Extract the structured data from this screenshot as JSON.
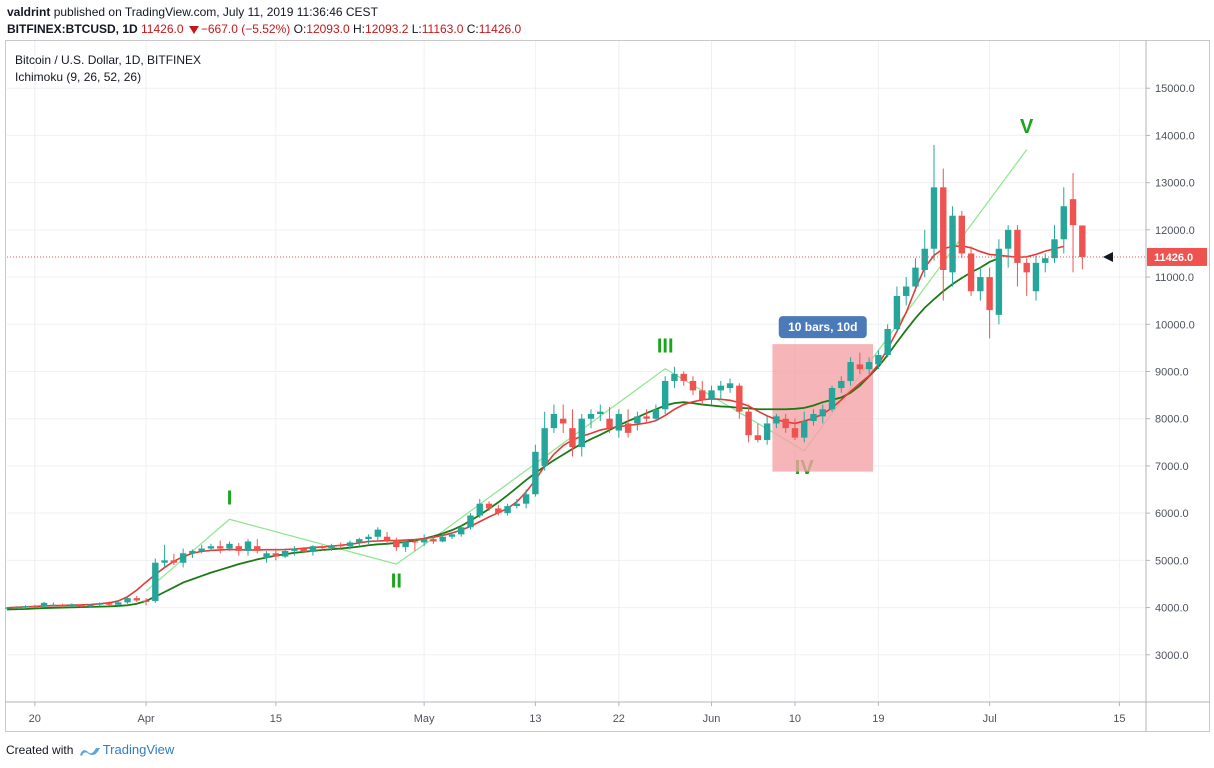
{
  "header": {
    "user": "valdrint",
    "published_text": "published on TradingView.com, July 11, 2019 11:36:46 CEST",
    "symbol": "BITFINEX:BTCUSD, 1D",
    "last": "11426.0",
    "change": "−667.0 (−5.52%)",
    "o_label": "O:",
    "o_value": "12093.0",
    "h_label": "H:",
    "h_value": "12093.2",
    "l_label": "L:",
    "l_value": "11163.0",
    "c_label": "C:",
    "c_value": "11426.0"
  },
  "legend": {
    "title": "Bitcoin / U.S. Dollar, 1D, BITFINEX",
    "indicator": "Ichimoku (9, 26, 52, 26)"
  },
  "footer": {
    "created_with": "Created with",
    "brand": "TradingView"
  },
  "colors": {
    "up": "#26a69a",
    "down": "#ef5350",
    "tenkan": "#e53935",
    "kijun": "#1b7a14",
    "wave": "#8de58d",
    "wave_label": "#1aa51a",
    "box": "#f4a3a6",
    "tag": "#4a7ab8"
  },
  "chart_data": {
    "type": "candlestick",
    "title": "Bitcoin / U.S. Dollar, 1D, BITFINEX",
    "ylim": [
      2000,
      16000
    ],
    "yticks": [
      "3000.0",
      "4000.0",
      "5000.0",
      "6000.0",
      "7000.0",
      "8000.0",
      "9000.0",
      "10000.0",
      "11000.0",
      "12000.0",
      "13000.0",
      "14000.0",
      "15000.0"
    ],
    "ytick_values": [
      3000,
      4000,
      5000,
      6000,
      7000,
      8000,
      9000,
      10000,
      11000,
      12000,
      13000,
      14000,
      15000
    ],
    "xlim": [
      0,
      123
    ],
    "xticks": [
      {
        "i": 3,
        "label": "20"
      },
      {
        "i": 15,
        "label": "Apr"
      },
      {
        "i": 29,
        "label": "15"
      },
      {
        "i": 45,
        "label": "May"
      },
      {
        "i": 57,
        "label": "13"
      },
      {
        "i": 66,
        "label": "22"
      },
      {
        "i": 76,
        "label": "Jun"
      },
      {
        "i": 85,
        "label": "10"
      },
      {
        "i": 94,
        "label": "19"
      },
      {
        "i": 106,
        "label": "Jul"
      },
      {
        "i": 120,
        "label": "15"
      }
    ],
    "price_line": 11426,
    "price_label": "11426.0",
    "candles": [
      [
        3980,
        4010,
        3960,
        4000
      ],
      [
        4000,
        4030,
        3980,
        4010
      ],
      [
        4010,
        4050,
        3990,
        4030
      ],
      [
        4030,
        4060,
        4000,
        4020
      ],
      [
        4020,
        4120,
        4000,
        4100
      ],
      [
        4050,
        4110,
        4020,
        4060
      ],
      [
        4060,
        4080,
        4000,
        4040
      ],
      [
        4040,
        4090,
        4010,
        4070
      ],
      [
        4040,
        4080,
        4000,
        4020
      ],
      [
        4020,
        4070,
        4000,
        4060
      ],
      [
        4060,
        4110,
        4030,
        4090
      ],
      [
        4090,
        4130,
        4040,
        4060
      ],
      [
        4060,
        4150,
        4030,
        4110
      ],
      [
        4110,
        4250,
        4080,
        4200
      ],
      [
        4200,
        4250,
        4120,
        4150
      ],
      [
        4150,
        4200,
        4050,
        4120
      ],
      [
        4140,
        5040,
        4100,
        4950
      ],
      [
        4950,
        5330,
        4850,
        5000
      ],
      [
        5000,
        5140,
        4900,
        4950
      ],
      [
        4950,
        5250,
        4850,
        5150
      ],
      [
        5150,
        5230,
        5050,
        5200
      ],
      [
        5200,
        5330,
        5150,
        5250
      ],
      [
        5250,
        5350,
        5200,
        5300
      ],
      [
        5300,
        5420,
        5150,
        5250
      ],
      [
        5250,
        5400,
        5200,
        5350
      ],
      [
        5300,
        5370,
        5100,
        5200
      ],
      [
        5200,
        5450,
        5100,
        5400
      ],
      [
        5300,
        5450,
        5150,
        5200
      ],
      [
        5050,
        5200,
        4950,
        5150
      ],
      [
        5150,
        5250,
        5000,
        5080
      ],
      [
        5080,
        5250,
        5050,
        5200
      ],
      [
        5200,
        5300,
        5100,
        5250
      ],
      [
        5250,
        5280,
        5150,
        5180
      ],
      [
        5180,
        5320,
        5100,
        5300
      ],
      [
        5300,
        5320,
        5200,
        5260
      ],
      [
        5260,
        5350,
        5200,
        5320
      ],
      [
        5320,
        5380,
        5250,
        5300
      ],
      [
        5300,
        5420,
        5230,
        5380
      ],
      [
        5380,
        5480,
        5300,
        5450
      ],
      [
        5450,
        5550,
        5350,
        5500
      ],
      [
        5500,
        5700,
        5400,
        5650
      ],
      [
        5500,
        5600,
        5350,
        5420
      ],
      [
        5420,
        5480,
        5200,
        5280
      ],
      [
        5280,
        5450,
        5180,
        5400
      ],
      [
        5400,
        5450,
        5200,
        5380
      ],
      [
        5380,
        5550,
        5300,
        5450
      ],
      [
        5450,
        5520,
        5350,
        5400
      ],
      [
        5400,
        5580,
        5380,
        5500
      ],
      [
        5500,
        5600,
        5450,
        5550
      ],
      [
        5550,
        5750,
        5500,
        5700
      ],
      [
        5700,
        6000,
        5650,
        5950
      ],
      [
        5950,
        6300,
        5900,
        6200
      ],
      [
        6200,
        6250,
        6050,
        6100
      ],
      [
        6100,
        6180,
        5950,
        6000
      ],
      [
        6000,
        6200,
        5950,
        6150
      ],
      [
        6150,
        6300,
        6100,
        6200
      ],
      [
        6200,
        6500,
        6100,
        6400
      ],
      [
        6400,
        7450,
        6350,
        7300
      ],
      [
        7000,
        8150,
        6900,
        7800
      ],
      [
        7800,
        8300,
        7700,
        8100
      ],
      [
        8000,
        8300,
        7700,
        7900
      ],
      [
        7800,
        8200,
        7200,
        7400
      ],
      [
        7400,
        8100,
        7200,
        8000
      ],
      [
        8000,
        8200,
        7800,
        8100
      ],
      [
        8100,
        8300,
        7950,
        8150
      ],
      [
        8000,
        8250,
        7700,
        7800
      ],
      [
        7750,
        8200,
        7600,
        8100
      ],
      [
        7900,
        8200,
        7600,
        7700
      ],
      [
        7900,
        8150,
        7750,
        8050
      ],
      [
        8050,
        8200,
        7900,
        8000
      ],
      [
        8000,
        8300,
        7950,
        8200
      ],
      [
        8200,
        8900,
        8100,
        8800
      ],
      [
        8800,
        9100,
        8650,
        8950
      ],
      [
        8950,
        9000,
        8700,
        8800
      ],
      [
        8800,
        8900,
        8500,
        8600
      ],
      [
        8600,
        8800,
        8300,
        8400
      ],
      [
        8400,
        8700,
        8300,
        8600
      ],
      [
        8600,
        8800,
        8400,
        8700
      ],
      [
        8650,
        8850,
        8550,
        8750
      ],
      [
        8700,
        8750,
        8000,
        8150
      ],
      [
        8150,
        8300,
        7500,
        7650
      ],
      [
        7650,
        7900,
        7500,
        7550
      ],
      [
        7550,
        8050,
        7450,
        7900
      ],
      [
        7900,
        8100,
        7800,
        8050
      ],
      [
        8000,
        8100,
        7700,
        7800
      ],
      [
        7800,
        8000,
        7550,
        7600
      ],
      [
        7600,
        8150,
        7500,
        7950
      ],
      [
        7950,
        8200,
        7850,
        8100
      ],
      [
        8050,
        8300,
        7900,
        8200
      ],
      [
        8200,
        8700,
        8150,
        8650
      ],
      [
        8650,
        8900,
        8550,
        8800
      ],
      [
        8800,
        9300,
        8700,
        9200
      ],
      [
        9150,
        9400,
        8950,
        9050
      ],
      [
        9050,
        9300,
        8950,
        9200
      ],
      [
        9150,
        9450,
        9050,
        9350
      ],
      [
        9350,
        10000,
        9300,
        9900
      ],
      [
        9900,
        10800,
        9850,
        10600
      ],
      [
        10600,
        11000,
        10400,
        10800
      ],
      [
        10800,
        11400,
        10700,
        11200
      ],
      [
        11150,
        12000,
        11000,
        11600
      ],
      [
        11600,
        13800,
        11350,
        12900
      ],
      [
        12900,
        13300,
        10500,
        11150
      ],
      [
        11100,
        12500,
        10800,
        12300
      ],
      [
        12300,
        12400,
        11400,
        11500
      ],
      [
        11500,
        11650,
        10600,
        10700
      ],
      [
        10700,
        11200,
        10500,
        11000
      ],
      [
        11000,
        11200,
        9700,
        10300
      ],
      [
        10200,
        11800,
        10000,
        11600
      ],
      [
        11600,
        12100,
        11200,
        12000
      ],
      [
        12000,
        12100,
        10800,
        11300
      ],
      [
        11300,
        11400,
        10600,
        11100
      ],
      [
        10700,
        11450,
        10500,
        11300
      ],
      [
        11300,
        11500,
        11100,
        11400
      ],
      [
        11400,
        12100,
        11300,
        11800
      ],
      [
        11800,
        12900,
        11500,
        12500
      ],
      [
        12650,
        13200,
        11100,
        12100
      ],
      [
        12093,
        12093.2,
        11163,
        11426
      ]
    ],
    "tenkan": [
      3995,
      4005,
      4015,
      4025,
      4035,
      4040,
      4045,
      4050,
      4055,
      4065,
      4080,
      4100,
      4140,
      4230,
      4370,
      4540,
      4700,
      4850,
      4980,
      5080,
      5150,
      5190,
      5210,
      5220,
      5230,
      5225,
      5220,
      5220,
      5225,
      5225,
      5230,
      5240,
      5255,
      5270,
      5285,
      5300,
      5320,
      5340,
      5370,
      5400,
      5410,
      5420,
      5420,
      5430,
      5440,
      5460,
      5490,
      5530,
      5580,
      5640,
      5720,
      5820,
      5920,
      6010,
      6100,
      6240,
      6450,
      6700,
      7000,
      7250,
      7430,
      7550,
      7630,
      7690,
      7760,
      7800,
      7830,
      7860,
      7880,
      7910,
      7960,
      8070,
      8200,
      8300,
      8360,
      8400,
      8420,
      8410,
      8390,
      8340,
      8270,
      8160,
      8060,
      7980,
      7930,
      7900,
      7950,
      8010,
      8100,
      8230,
      8400,
      8580,
      8750,
      8910,
      9150,
      9480,
      9850,
      10250,
      10750,
      11200,
      11460,
      11600,
      11650,
      11660,
      11620,
      11540,
      11480,
      11460,
      11440,
      11420,
      11430,
      11480,
      11550,
      11600,
      11650
    ],
    "kijun": [
      3960,
      3965,
      3970,
      3980,
      3990,
      3995,
      4000,
      4005,
      4010,
      4015,
      4020,
      4025,
      4035,
      4050,
      4080,
      4140,
      4230,
      4330,
      4430,
      4530,
      4600,
      4670,
      4740,
      4800,
      4860,
      4920,
      4970,
      5020,
      5060,
      5100,
      5130,
      5160,
      5180,
      5200,
      5220,
      5235,
      5250,
      5270,
      5290,
      5320,
      5340,
      5350,
      5370,
      5390,
      5420,
      5460,
      5510,
      5570,
      5640,
      5730,
      5840,
      5960,
      6090,
      6230,
      6380,
      6540,
      6700,
      6850,
      6990,
      7120,
      7240,
      7360,
      7470,
      7570,
      7660,
      7760,
      7860,
      7950,
      8030,
      8120,
      8200,
      8280,
      8330,
      8350,
      8330,
      8300,
      8280,
      8260,
      8250,
      8230,
      8220,
      8200,
      8200,
      8200,
      8200,
      8210,
      8230,
      8280,
      8350,
      8400,
      8450,
      8550,
      8700,
      8900,
      9100,
      9350,
      9620,
      9880,
      10130,
      10350,
      10530,
      10700,
      10850,
      10980,
      11100,
      11200,
      11320,
      11400
    ],
    "waves": {
      "points": [
        {
          "i": 15,
          "v": 4350
        },
        {
          "i": 24,
          "v": 5870
        },
        {
          "i": 42,
          "v": 4920
        },
        {
          "i": 46,
          "v": 5470
        },
        {
          "i": 71,
          "v": 9060
        },
        {
          "i": 86,
          "v": 7320
        },
        {
          "i": 110,
          "v": 13700
        }
      ],
      "labels": [
        {
          "i": 24,
          "v": 6180,
          "text": "I"
        },
        {
          "i": 42,
          "v": 4430,
          "text": "II"
        },
        {
          "i": 71,
          "v": 9400,
          "text": "III"
        },
        {
          "i": 86,
          "v": 6830,
          "text": "IV"
        },
        {
          "i": 110,
          "v": 14050,
          "text": "V"
        }
      ]
    },
    "measure_box": {
      "i0": 83,
      "i1": 93,
      "vlow": 6880,
      "vhigh": 9580,
      "label": "10 bars, 10d"
    }
  }
}
